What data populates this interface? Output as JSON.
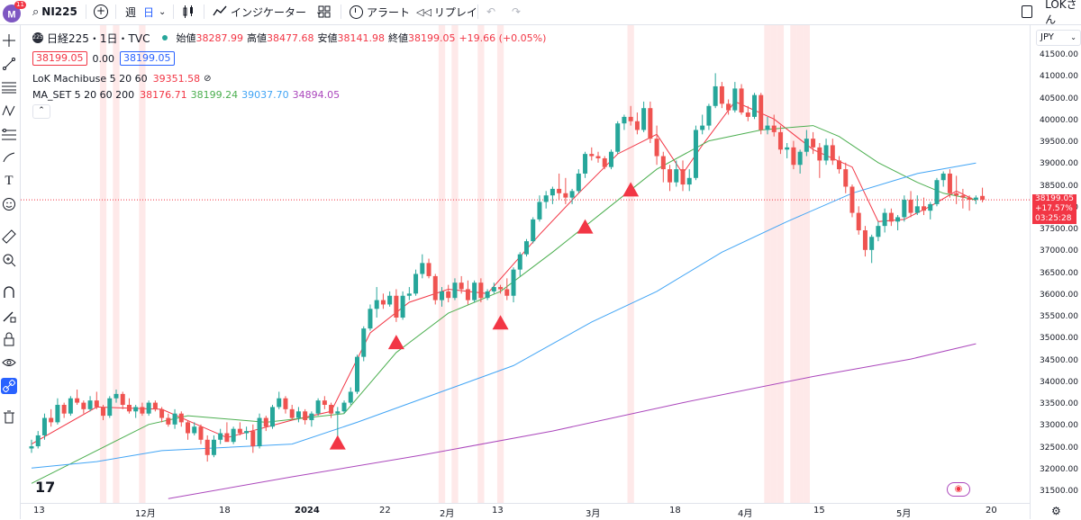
{
  "toolbar": {
    "notification_count": "11",
    "symbol": "NI225",
    "interval_week": "週",
    "interval_day": "日",
    "indicators_label": "インジケーター",
    "alert_label": "アラート",
    "replay_label": "リプレイ",
    "user_label": "LOKさん"
  },
  "legend": {
    "symbol_badge": "225",
    "title": "日経225・1日・TVC",
    "open_label": "始値",
    "open_value": "38287.99",
    "high_label": "高値",
    "high_value": "38477.68",
    "low_label": "安値",
    "low_value": "38141.98",
    "close_label": "終値",
    "close_value": "38199.05",
    "change": "+19.66 (+0.05%)",
    "bid": "38199.05",
    "spread": "0.00",
    "ask": "38199.05",
    "indicator1_name": "LoK Machibuse 5 20 60",
    "indicator1_value": "39351.58",
    "indicator2_name": "MA_SET 5 20 60 200",
    "ma5": "38176.71",
    "ma20": "38199.24",
    "ma60": "39037.70",
    "ma200": "34894.05"
  },
  "price_axis": {
    "currency": "JPY",
    "ticks": [
      "41500.00",
      "41000.00",
      "40500.00",
      "40000.00",
      "39500.00",
      "39000.00",
      "38500.00",
      "38000.00",
      "37500.00",
      "37000.00",
      "36500.00",
      "36000.00",
      "35500.00",
      "35000.00",
      "34500.00",
      "34000.00",
      "33500.00",
      "33000.00",
      "32500.00",
      "32000.00",
      "31500.00"
    ],
    "last_price": "38199.05",
    "last_change": "+17.57%",
    "countdown": "03:25:28"
  },
  "time_axis": {
    "labels": [
      "13",
      "12月",
      "18",
      "2024",
      "22",
      "2月",
      "13",
      "3月",
      "18",
      "4月",
      "15",
      "5月",
      "20"
    ]
  },
  "colors": {
    "up": "#26a69a",
    "down": "#ef5350",
    "ma5": "#f23645",
    "ma20": "#4caf50",
    "ma60": "#42a5f5",
    "ma200": "#ab47bc",
    "highlight": "#fde0e0",
    "accent": "#2962ff"
  },
  "chart_data": {
    "type": "candlestick",
    "symbol": "日経225",
    "interval": "1日",
    "ylim": [
      31400,
      41700
    ],
    "candles": [
      [
        32500,
        32700,
        32400,
        32550
      ],
      [
        32550,
        32900,
        32500,
        32800
      ],
      [
        32800,
        33300,
        32700,
        33200
      ],
      [
        33200,
        33400,
        33000,
        33100
      ],
      [
        33100,
        33650,
        33050,
        33500
      ],
      [
        33500,
        33550,
        33200,
        33300
      ],
      [
        33300,
        33700,
        33250,
        33650
      ],
      [
        33650,
        33850,
        33500,
        33550
      ],
      [
        33550,
        33600,
        33300,
        33400
      ],
      [
        33400,
        33700,
        33350,
        33600
      ],
      [
        33600,
        33800,
        33400,
        33450
      ],
      [
        33450,
        33500,
        33150,
        33250
      ],
      [
        33250,
        33700,
        33200,
        33650
      ],
      [
        33650,
        33850,
        33550,
        33750
      ],
      [
        33750,
        33800,
        33400,
        33500
      ],
      [
        33500,
        33650,
        33300,
        33350
      ],
      [
        33350,
        33500,
        33200,
        33450
      ],
      [
        33450,
        33550,
        33250,
        33300
      ],
      [
        33300,
        33600,
        33250,
        33550
      ],
      [
        33550,
        33600,
        33350,
        33400
      ],
      [
        33400,
        33450,
        33100,
        33200
      ],
      [
        33200,
        33300,
        33000,
        33050
      ],
      [
        33050,
        33400,
        32950,
        33300
      ],
      [
        33300,
        33350,
        33000,
        33100
      ],
      [
        33100,
        33150,
        32700,
        32850
      ],
      [
        32850,
        33100,
        32800,
        33000
      ],
      [
        33000,
        33050,
        32600,
        32700
      ],
      [
        32700,
        32800,
        32200,
        32350
      ],
      [
        32350,
        32800,
        32300,
        32700
      ],
      [
        32700,
        32950,
        32600,
        32850
      ],
      [
        32850,
        33100,
        32700,
        32650
      ],
      [
        32650,
        33000,
        32600,
        32950
      ],
      [
        32950,
        33100,
        32800,
        32850
      ],
      [
        32850,
        33000,
        32700,
        32900
      ],
      [
        32900,
        33050,
        32400,
        32550
      ],
      [
        32550,
        33300,
        32500,
        33200
      ],
      [
        33200,
        33250,
        32900,
        33000
      ],
      [
        33000,
        33500,
        32950,
        33450
      ],
      [
        33450,
        33800,
        33400,
        33650
      ],
      [
        33650,
        33700,
        33300,
        33400
      ],
      [
        33400,
        33500,
        33150,
        33200
      ],
      [
        33200,
        33450,
        33100,
        33350
      ],
      [
        33350,
        33400,
        33050,
        33150
      ],
      [
        33150,
        33350,
        33000,
        33300
      ],
      [
        33300,
        33650,
        33250,
        33600
      ],
      [
        33600,
        33700,
        33400,
        33500
      ],
      [
        33500,
        33550,
        33200,
        33300
      ],
      [
        33300,
        33450,
        32700,
        33350
      ],
      [
        33350,
        33600,
        33300,
        33550
      ],
      [
        33550,
        33900,
        33500,
        33800
      ],
      [
        33800,
        34650,
        33750,
        34600
      ],
      [
        34600,
        35300,
        34500,
        35250
      ],
      [
        35250,
        35800,
        35200,
        35700
      ],
      [
        35700,
        36200,
        35500,
        35900
      ],
      [
        35900,
        36050,
        35700,
        35800
      ],
      [
        35800,
        36100,
        35750,
        36000
      ],
      [
        36000,
        36150,
        35400,
        35500
      ],
      [
        35500,
        36100,
        35450,
        36000
      ],
      [
        36000,
        36200,
        35900,
        36050
      ],
      [
        36050,
        36600,
        36000,
        36500
      ],
      [
        36500,
        36950,
        36400,
        36750
      ],
      [
        36750,
        36850,
        36400,
        36450
      ],
      [
        36450,
        36500,
        35800,
        35900
      ],
      [
        35900,
        36200,
        35750,
        36100
      ],
      [
        36100,
        36250,
        35850,
        35950
      ],
      [
        35950,
        36400,
        35900,
        36300
      ],
      [
        36300,
        36450,
        36050,
        36150
      ],
      [
        36150,
        36350,
        35800,
        35900
      ],
      [
        35900,
        36350,
        35850,
        36300
      ],
      [
        36300,
        36400,
        35850,
        35950
      ],
      [
        35950,
        36150,
        35900,
        36100
      ],
      [
        36100,
        36300,
        36050,
        36200
      ],
      [
        36200,
        36250,
        36050,
        36150
      ],
      [
        36150,
        36400,
        35900,
        36000
      ],
      [
        36000,
        36650,
        35850,
        36600
      ],
      [
        36600,
        37000,
        36450,
        36950
      ],
      [
        36950,
        37300,
        36900,
        37250
      ],
      [
        37250,
        37800,
        37200,
        37750
      ],
      [
        37750,
        38300,
        37700,
        38150
      ],
      [
        38150,
        38400,
        38000,
        38300
      ],
      [
        38300,
        38500,
        38100,
        38450
      ],
      [
        38450,
        38800,
        38200,
        38350
      ],
      [
        38350,
        38700,
        38100,
        38250
      ],
      [
        38250,
        38450,
        38100,
        38400
      ],
      [
        38400,
        38900,
        38350,
        38800
      ],
      [
        38800,
        39300,
        38700,
        39250
      ],
      [
        39250,
        39400,
        39100,
        39200
      ],
      [
        39200,
        39300,
        39050,
        39150
      ],
      [
        39150,
        39200,
        38900,
        38950
      ],
      [
        38950,
        39350,
        38900,
        39300
      ],
      [
        39300,
        40000,
        39250,
        39950
      ],
      [
        39950,
        40150,
        39800,
        40100
      ],
      [
        40100,
        40350,
        39900,
        40000
      ],
      [
        40000,
        40200,
        39700,
        39800
      ],
      [
        39800,
        40450,
        39750,
        40300
      ],
      [
        40300,
        40450,
        39500,
        39600
      ],
      [
        39600,
        39900,
        39000,
        39200
      ],
      [
        39200,
        39300,
        38600,
        38900
      ],
      [
        38900,
        39000,
        38400,
        38600
      ],
      [
        38600,
        39100,
        38500,
        38900
      ],
      [
        38900,
        39100,
        38400,
        38550
      ],
      [
        38550,
        38900,
        38400,
        38700
      ],
      [
        38700,
        39900,
        38650,
        39800
      ],
      [
        39800,
        40150,
        39700,
        39900
      ],
      [
        39900,
        40400,
        39800,
        40350
      ],
      [
        40350,
        41100,
        40300,
        40800
      ],
      [
        40800,
        40900,
        40300,
        40400
      ],
      [
        40400,
        40500,
        40150,
        40250
      ],
      [
        40250,
        40900,
        40200,
        40750
      ],
      [
        40750,
        40850,
        40150,
        40200
      ],
      [
        40200,
        40350,
        40000,
        40100
      ],
      [
        40100,
        40650,
        40050,
        40600
      ],
      [
        40600,
        40650,
        39700,
        39800
      ],
      [
        39800,
        40100,
        39700,
        39900
      ],
      [
        39900,
        40150,
        39650,
        39750
      ],
      [
        39750,
        39900,
        39250,
        39350
      ],
      [
        39350,
        39500,
        39150,
        39400
      ],
      [
        39400,
        39550,
        38900,
        39000
      ],
      [
        39000,
        39350,
        38800,
        39300
      ],
      [
        39300,
        39800,
        39200,
        39600
      ],
      [
        39600,
        39750,
        39250,
        39400
      ],
      [
        39400,
        39500,
        38700,
        39100
      ],
      [
        39100,
        39600,
        39000,
        39450
      ],
      [
        39450,
        39600,
        39000,
        39100
      ],
      [
        39100,
        39200,
        38800,
        38900
      ],
      [
        38900,
        39050,
        38350,
        38500
      ],
      [
        38500,
        38550,
        37800,
        37900
      ],
      [
        37900,
        38050,
        37400,
        37500
      ],
      [
        37500,
        37600,
        36900,
        37050
      ],
      [
        37050,
        37400,
        36750,
        37350
      ],
      [
        37350,
        37700,
        37250,
        37600
      ],
      [
        37600,
        38000,
        37450,
        37900
      ],
      [
        37900,
        38000,
        37600,
        37700
      ],
      [
        37700,
        37850,
        37500,
        37800
      ],
      [
        37800,
        38300,
        37700,
        38200
      ],
      [
        38200,
        38400,
        37800,
        37900
      ],
      [
        37900,
        38300,
        37850,
        38050
      ],
      [
        38050,
        38250,
        37850,
        37950
      ],
      [
        37950,
        38150,
        37750,
        38100
      ],
      [
        38100,
        38700,
        38050,
        38650
      ],
      [
        38650,
        38850,
        38500,
        38800
      ],
      [
        38800,
        38900,
        38250,
        38350
      ],
      [
        38350,
        38750,
        38100,
        38300
      ],
      [
        38300,
        38450,
        38000,
        38250
      ],
      [
        38250,
        38300,
        37950,
        38200
      ],
      [
        38200,
        38300,
        38100,
        38250
      ],
      [
        38287.99,
        38477.68,
        38141.98,
        38199.05
      ]
    ],
    "ma_series": [
      {
        "name": "MA 5",
        "color": "#f23645",
        "points": [
          [
            0,
            32600
          ],
          [
            10,
            33450
          ],
          [
            20,
            33400
          ],
          [
            30,
            32750
          ],
          [
            40,
            33150
          ],
          [
            46,
            33350
          ],
          [
            52,
            35150
          ],
          [
            58,
            35850
          ],
          [
            64,
            36150
          ],
          [
            70,
            36050
          ],
          [
            78,
            37400
          ],
          [
            84,
            38350
          ],
          [
            90,
            39250
          ],
          [
            96,
            39700
          ],
          [
            100,
            38800
          ],
          [
            103,
            39450
          ],
          [
            108,
            40450
          ],
          [
            114,
            40050
          ],
          [
            120,
            39350
          ],
          [
            126,
            38950
          ],
          [
            130,
            37700
          ],
          [
            134,
            37750
          ],
          [
            138,
            38050
          ],
          [
            142,
            38400
          ],
          [
            145,
            38180
          ]
        ]
      },
      {
        "name": "MA 20",
        "color": "#4caf50",
        "points": [
          [
            0,
            31700
          ],
          [
            8,
            32300
          ],
          [
            18,
            33050
          ],
          [
            24,
            33250
          ],
          [
            36,
            33100
          ],
          [
            48,
            33300
          ],
          [
            56,
            34700
          ],
          [
            64,
            35600
          ],
          [
            72,
            36100
          ],
          [
            80,
            37000
          ],
          [
            88,
            37950
          ],
          [
            96,
            38900
          ],
          [
            104,
            39550
          ],
          [
            112,
            39800
          ],
          [
            120,
            39900
          ],
          [
            124,
            39650
          ],
          [
            130,
            39050
          ],
          [
            136,
            38600
          ],
          [
            140,
            38350
          ],
          [
            145,
            38200
          ]
        ]
      },
      {
        "name": "MA 60",
        "color": "#42a5f5",
        "points": [
          [
            0,
            32050
          ],
          [
            10,
            32200
          ],
          [
            20,
            32450
          ],
          [
            40,
            32600
          ],
          [
            50,
            33100
          ],
          [
            62,
            33750
          ],
          [
            74,
            34400
          ],
          [
            86,
            35400
          ],
          [
            96,
            36100
          ],
          [
            106,
            37000
          ],
          [
            116,
            37700
          ],
          [
            126,
            38350
          ],
          [
            136,
            38800
          ],
          [
            145,
            39040
          ]
        ]
      },
      {
        "name": "MA 200",
        "color": "#ab47bc",
        "points": [
          [
            21,
            31350
          ],
          [
            40,
            31850
          ],
          [
            60,
            32350
          ],
          [
            80,
            32900
          ],
          [
            100,
            33550
          ],
          [
            120,
            34150
          ],
          [
            135,
            34550
          ],
          [
            145,
            34900
          ]
        ]
      }
    ],
    "signals": [
      {
        "i": 47,
        "price": 32950
      },
      {
        "i": 56,
        "price": 35250
      },
      {
        "i": 72,
        "price": 35700
      },
      {
        "i": 85,
        "price": 37900
      },
      {
        "i": 92,
        "price": 38750
      }
    ],
    "highlight_bars": [
      11,
      13,
      17,
      63,
      65,
      69,
      72,
      92,
      113,
      114,
      115,
      117,
      118,
      119
    ]
  }
}
